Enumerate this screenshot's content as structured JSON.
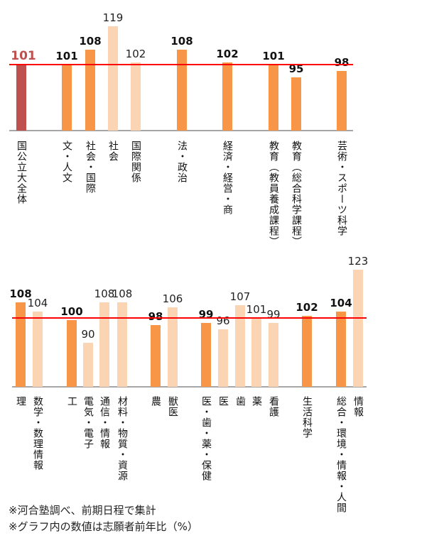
{
  "colors": {
    "overall": "#c0504d",
    "major": "#f79646",
    "sub": "#fbd4b4",
    "reference_line": "#ff0000",
    "axis": "#a6a6a6",
    "overall_label": "#c0504d"
  },
  "chart_data": [
    {
      "type": "bar",
      "ylim": [
        70,
        120
      ],
      "reference_line": 101,
      "categories": [
        "国公立大全体",
        "文・人文",
        "社会・国際",
        "社会",
        "国際関係",
        "法・政治",
        "経済・経営・商",
        "教育（教員養成課程）",
        "教育（総合科学課程）",
        "芸術・スポーツ科学"
      ],
      "values": [
        101,
        101,
        108,
        119,
        102,
        108,
        102,
        101,
        95,
        98
      ],
      "kinds": [
        "overall",
        "major",
        "major",
        "sub",
        "sub",
        "major",
        "major",
        "major",
        "major",
        "major"
      ]
    },
    {
      "type": "bar",
      "ylim": [
        70,
        124
      ],
      "reference_line": 101,
      "categories": [
        "理",
        "数学・数理情報",
        "工",
        "電気・電子",
        "通信・情報",
        "材料・物質・資源",
        "農",
        "獣医",
        "医・歯・薬・保健",
        "医",
        "歯",
        "薬",
        "看護",
        "生活科学",
        "総合・環境・情報・人間",
        "情報"
      ],
      "values": [
        108,
        104,
        100,
        90,
        108,
        108,
        98,
        106,
        99,
        96,
        107,
        101,
        99,
        102,
        104,
        123
      ],
      "kinds": [
        "major",
        "sub",
        "major",
        "sub",
        "sub",
        "sub",
        "major",
        "sub",
        "major",
        "sub",
        "sub",
        "sub",
        "sub",
        "major",
        "major",
        "sub"
      ]
    }
  ],
  "notes": [
    "※河合塾調べ、前期日程で集計",
    "※グラフ内の数値は志願者前年比（%）"
  ]
}
